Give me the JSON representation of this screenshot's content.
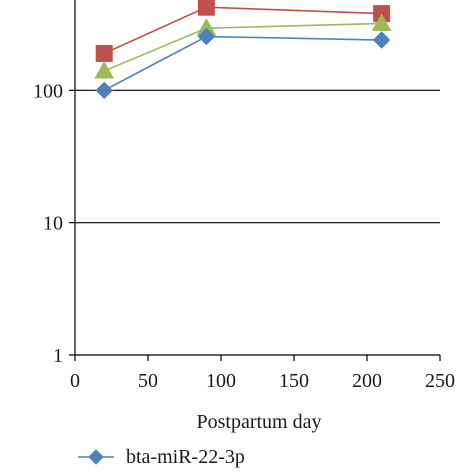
{
  "chart_data": {
    "type": "line",
    "xlabel": "Postpartum day",
    "ylabel": "",
    "xlim": [
      0,
      250
    ],
    "ylim": [
      1,
      1000
    ],
    "yscale": "log",
    "x_ticks": [
      0,
      50,
      100,
      150,
      200,
      250
    ],
    "y_ticks": [
      1,
      10,
      100
    ],
    "grid": "horizontal",
    "legend": "bottom",
    "series": [
      {
        "name": "bta-miR-22-3p",
        "color": "#4f81bd",
        "marker": "diamond",
        "x": [
          20,
          90,
          210
        ],
        "y": [
          100,
          255,
          240
        ]
      },
      {
        "name": "",
        "color": "#c0504d",
        "marker": "square",
        "x": [
          20,
          90,
          210
        ],
        "y": [
          190,
          425,
          380
        ]
      },
      {
        "name": "",
        "color": "#9bbb59",
        "marker": "triangle",
        "x": [
          20,
          90,
          210
        ],
        "y": [
          140,
          295,
          320
        ]
      }
    ]
  }
}
